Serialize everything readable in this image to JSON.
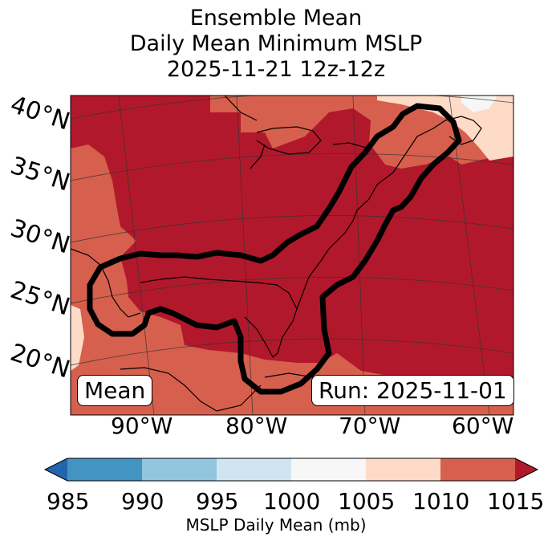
{
  "title": {
    "line1": "Ensemble Mean",
    "line2": "Daily Mean Minimum MSLP",
    "line3": "2025-11-21 12z-12z"
  },
  "map": {
    "lat_labels": [
      "40°N",
      "35°N",
      "30°N",
      "25°N",
      "20°N"
    ],
    "lon_labels": [
      "90°W",
      "80°W",
      "70°W",
      "60°W"
    ],
    "mean_label": "Mean",
    "run_label": "Run: 2025-11-01",
    "fill_colors": {
      "1000-1005": "#f7f7f7",
      "1005-1010": "#fddbc7",
      "1010-1015": "#d6604d",
      "1015+": "#b2182b"
    },
    "contour_color": "#000000"
  },
  "colorbar": {
    "ticks": [
      "985",
      "990",
      "995",
      "1000",
      "1005",
      "1010",
      "1015"
    ],
    "label": "MSLP Daily Mean (mb)",
    "colors": [
      "#2166ac",
      "#4393c3",
      "#92c5de",
      "#d1e5f0",
      "#f7f7f7",
      "#fddbc7",
      "#d6604d",
      "#b2182b"
    ]
  }
}
